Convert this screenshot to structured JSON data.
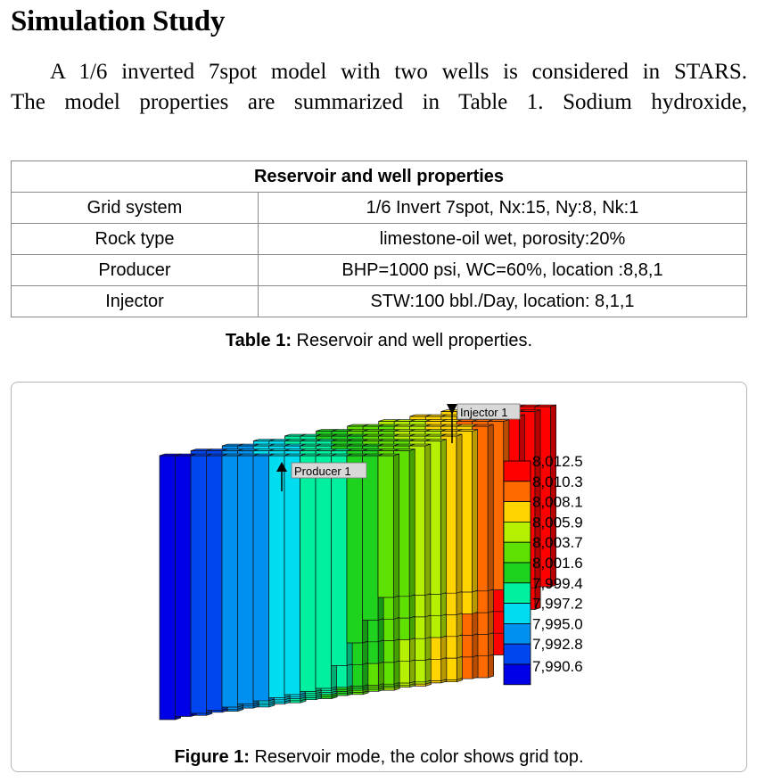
{
  "section": {
    "title": "Simulation Study"
  },
  "paragraph": {
    "line1": "A 1/6 inverted 7spot model with two wells is considered in STARS.",
    "line2": "The model properties are summarized in Table 1. Sodium hydroxide,"
  },
  "table1": {
    "header": "Reservoir and well properties",
    "rows": [
      {
        "name": "Grid system",
        "value": "1/6 Invert 7spot, Nx:15, Ny:8, Nk:1"
      },
      {
        "name": "Rock type",
        "value": "limestone-oil wet, porosity:20%"
      },
      {
        "name": "Producer",
        "value": "BHP=1000 psi, WC=60%, location :8,8,1"
      },
      {
        "name": "Injector",
        "value": "STW:100 bbl./Day, location: 8,1,1"
      }
    ],
    "caption_label": "Table 1:",
    "caption_text": " Reservoir and well properties."
  },
  "figure1": {
    "wells": {
      "injector": "Injector 1",
      "producer": "Producer 1"
    },
    "legend": {
      "values": [
        "8,012.5",
        "8,010.3",
        "8,008.1",
        "8,005.9",
        "8,003.7",
        "8,001.6",
        "7,999.4",
        "7,997.2",
        "7,995.0",
        "7,992.8",
        "7,990.6"
      ],
      "colors": [
        "#ff0000",
        "#ff6a00",
        "#ffd400",
        "#b4f000",
        "#5ee000",
        "#1ed21e",
        "#00f0a0",
        "#00dcf0",
        "#0090f0",
        "#0046f0",
        "#0000e6"
      ]
    },
    "caption_label": "Figure 1:",
    "caption_text": " Reservoir mode, the color shows grid top."
  }
}
